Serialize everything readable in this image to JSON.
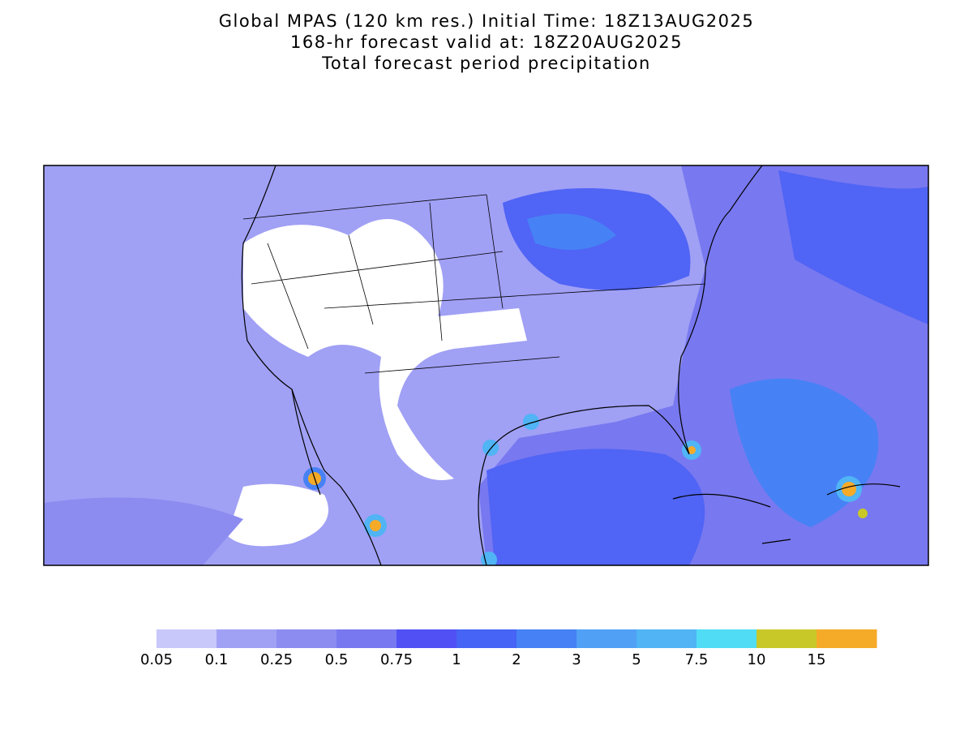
{
  "header": {
    "lines": [
      "Global MPAS (120 km res.) Initial Time: 18Z13AUG2025",
      "168-hr forecast valid at: 18Z20AUG2025",
      "Total forecast period precipitation"
    ]
  },
  "colorbar": {
    "colors": [
      "#c8c8fa",
      "#a0a0f5",
      "#8c8cf0",
      "#7878f0",
      "#5050f5",
      "#4664f5",
      "#4682f5",
      "#50a0f5",
      "#50b4f5",
      "#50dcf5",
      "#c8c828",
      "#f5aa28"
    ],
    "labels": [
      "0.05",
      "0.1",
      "0.25",
      "0.5",
      "0.75",
      "1",
      "2",
      "3",
      "5",
      "7.5",
      "10",
      "15"
    ]
  }
}
